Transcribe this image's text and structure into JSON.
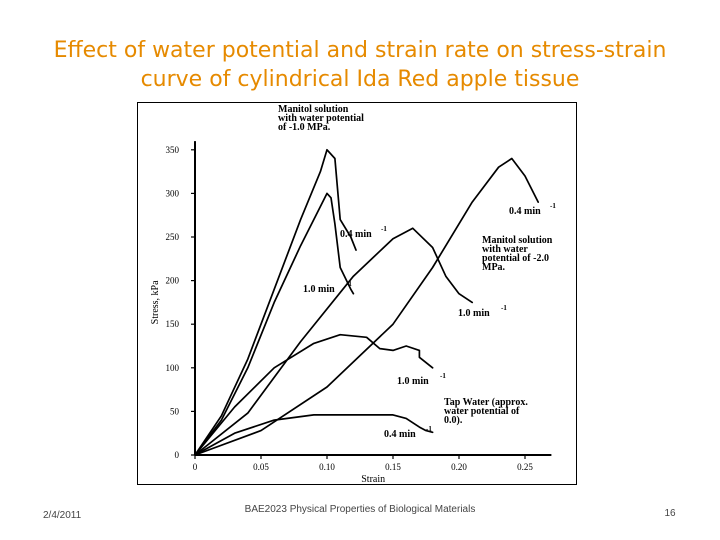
{
  "slide": {
    "title": "Effect of water potential and strain rate on stress-strain curve of cylindrical Ida Red apple tissue",
    "title_color": "#e68a00",
    "footer_date": "2/4/2011",
    "footer_course": "BAE2023 Physical Properties of Biological Materials",
    "page_number": "16"
  },
  "chart_data": {
    "type": "line",
    "title": "",
    "xlabel": "Strain",
    "ylabel": "Stress, kPa",
    "xlim": [
      0,
      0.27
    ],
    "ylim": [
      0,
      360
    ],
    "x_ticks": [
      "0",
      "0.05",
      "0.10",
      "0.15",
      "0.20",
      "0.25"
    ],
    "y_ticks": [
      "0",
      "50",
      "100",
      "150",
      "200",
      "250",
      "300",
      "350"
    ],
    "series": [
      {
        "name": "Manitol solution with water potential of -1.0 MPa, 0.4 min-1",
        "points": [
          [
            0,
            0
          ],
          [
            0.02,
            45
          ],
          [
            0.04,
            110
          ],
          [
            0.06,
            190
          ],
          [
            0.08,
            270
          ],
          [
            0.095,
            325
          ],
          [
            0.1,
            350
          ],
          [
            0.106,
            340
          ],
          [
            0.11,
            270
          ],
          [
            0.118,
            250
          ],
          [
            0.122,
            235
          ]
        ]
      },
      {
        "name": "Manitol solution with water potential of -1.0 MPa, 1.0 min-1",
        "points": [
          [
            0,
            0
          ],
          [
            0.02,
            40
          ],
          [
            0.04,
            100
          ],
          [
            0.06,
            175
          ],
          [
            0.08,
            240
          ],
          [
            0.095,
            285
          ],
          [
            0.1,
            300
          ],
          [
            0.103,
            295
          ],
          [
            0.106,
            265
          ],
          [
            0.11,
            215
          ],
          [
            0.118,
            190
          ],
          [
            0.12,
            185
          ]
        ]
      },
      {
        "name": "Manitol solution with water potential of -2.0 MPa, 0.4 min-1",
        "points": [
          [
            0,
            0
          ],
          [
            0.05,
            28
          ],
          [
            0.1,
            78
          ],
          [
            0.15,
            150
          ],
          [
            0.18,
            215
          ],
          [
            0.21,
            290
          ],
          [
            0.23,
            330
          ],
          [
            0.24,
            340
          ],
          [
            0.25,
            320
          ],
          [
            0.26,
            290
          ]
        ]
      },
      {
        "name": "Manitol solution with water potential of -2.0 MPa, 1.0 min-1",
        "points": [
          [
            0,
            0
          ],
          [
            0.04,
            48
          ],
          [
            0.08,
            130
          ],
          [
            0.12,
            205
          ],
          [
            0.15,
            248
          ],
          [
            0.165,
            260
          ],
          [
            0.18,
            238
          ],
          [
            0.19,
            205
          ],
          [
            0.2,
            185
          ],
          [
            0.21,
            175
          ]
        ]
      },
      {
        "name": "Tap Water (approx. water potential of 0.0), 1.0 min-1",
        "points": [
          [
            0,
            0
          ],
          [
            0.03,
            55
          ],
          [
            0.06,
            100
          ],
          [
            0.09,
            128
          ],
          [
            0.11,
            138
          ],
          [
            0.13,
            135
          ],
          [
            0.14,
            122
          ],
          [
            0.15,
            120
          ],
          [
            0.16,
            125
          ],
          [
            0.17,
            120
          ],
          [
            0.17,
            112
          ],
          [
            0.18,
            100
          ]
        ]
      },
      {
        "name": "Tap Water (approx. water potential of 0.0), 0.4 min-1",
        "points": [
          [
            0,
            0
          ],
          [
            0.03,
            25
          ],
          [
            0.06,
            40
          ],
          [
            0.09,
            46
          ],
          [
            0.11,
            46
          ],
          [
            0.14,
            46
          ],
          [
            0.15,
            46
          ],
          [
            0.16,
            42
          ],
          [
            0.17,
            32
          ],
          [
            0.175,
            28
          ],
          [
            0.18,
            26
          ]
        ]
      }
    ],
    "annotations": [
      "Manitol solution",
      "with water potential",
      "of -1.0 MPa.",
      "0.4 min",
      "-1",
      "1.0 min",
      "-1",
      "0.4 min",
      "-1",
      "Manitol solution",
      "with water",
      "potential of -2.0",
      "MPa.",
      "1.0 min",
      "-1",
      "1.0 min",
      "-1",
      "Tap Water (approx.",
      "water potential of",
      "0.0).",
      "0.4 min",
      "-1"
    ]
  }
}
